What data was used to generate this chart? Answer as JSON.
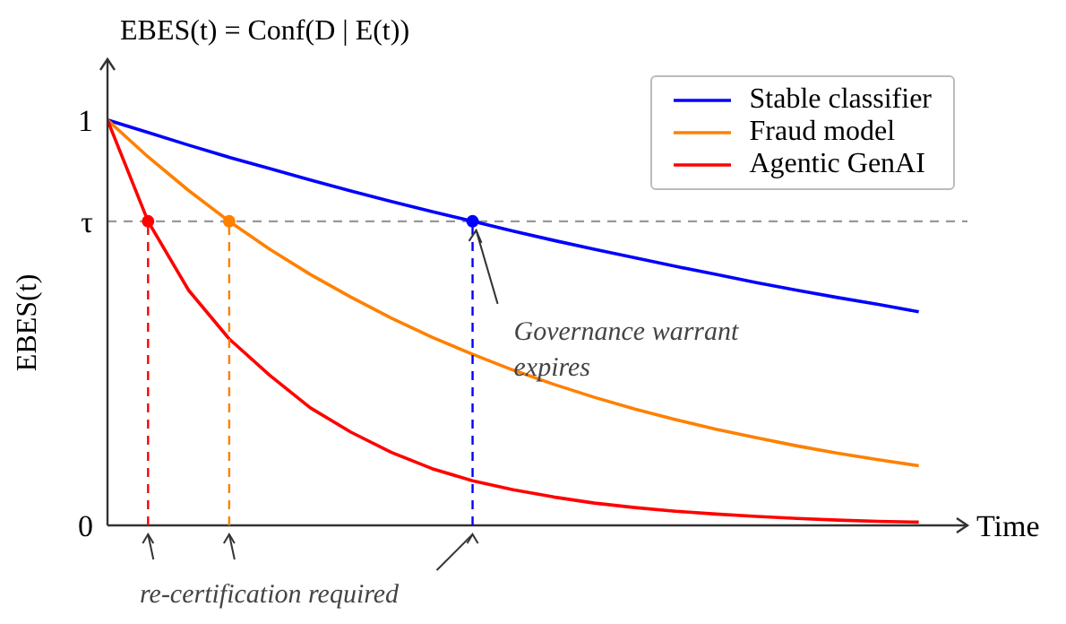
{
  "chart_data": {
    "type": "line",
    "title": "EBES(t) = Conf(D | E(t))",
    "ylabel": "EBES(t)",
    "xlabel": "Time",
    "categories": [
      null,
      null,
      null,
      null,
      null,
      null,
      null,
      null,
      null,
      null,
      null,
      null,
      null,
      null,
      null,
      null,
      null,
      null,
      null,
      null,
      null
    ],
    "ylim": [
      0,
      1.15
    ],
    "yticks": [
      0,
      {
        "value": 0.75,
        "label": "τ"
      },
      1
    ],
    "grid": false,
    "legend": "top right",
    "line_style": "solid",
    "series": [
      {
        "name": "Stable classifier",
        "color": "#0000ff",
        "values": [
          1,
          0.969,
          0.938,
          0.908,
          0.88,
          0.852,
          0.825,
          0.799,
          0.774,
          0.75,
          0.726,
          0.703,
          0.681,
          0.66,
          0.639,
          0.619,
          0.599,
          0.58,
          0.562,
          0.545,
          0.527
        ]
      },
      {
        "name": "Fraud model",
        "color": "#ff8000",
        "values": [
          1,
          0.909,
          0.826,
          0.75,
          0.681,
          0.619,
          0.563,
          0.511,
          0.464,
          0.422,
          0.383,
          0.348,
          0.316,
          0.287,
          0.261,
          0.237,
          0.216,
          0.196,
          0.178,
          0.162,
          0.147
        ]
      },
      {
        "name": "Agentic GenAI",
        "color": "#ff0000",
        "values": [
          1,
          0.75,
          0.58,
          0.46,
          0.37,
          0.29,
          0.23,
          0.18,
          0.14,
          0.11,
          0.088,
          0.07,
          0.055,
          0.044,
          0.035,
          0.028,
          0.022,
          0.017,
          0.013,
          0.01,
          0.008
        ]
      },
      {
        "type": "lollipop",
        "color": "#0000ff",
        "line_style": "dashed",
        "values": [
          null,
          null,
          null,
          null,
          null,
          null,
          null,
          null,
          null,
          0.75,
          null,
          null,
          null,
          null,
          null,
          null,
          null,
          null,
          null,
          null,
          null
        ]
      },
      {
        "type": "lollipop",
        "color": "#ff8000",
        "line_style": "dashed",
        "values": [
          null,
          null,
          null,
          0.75,
          null,
          null,
          null,
          null,
          null,
          null,
          null,
          null,
          null,
          null,
          null,
          null,
          null,
          null,
          null,
          null,
          null
        ]
      },
      {
        "type": "lollipop",
        "color": "#ff0000",
        "line_style": "dashed",
        "values": [
          null,
          0.75,
          null,
          null,
          null,
          null,
          null,
          null,
          null,
          null,
          null,
          null,
          null,
          null,
          null,
          null,
          null,
          null,
          null,
          null,
          null
        ]
      }
    ],
    "ref_lines": [
      {
        "axis": "y",
        "value": 0.75,
        "color": "#999999",
        "line_style": "dashed"
      }
    ],
    "annotations": [
      "Governance warrant expires",
      "re-certification required"
    ]
  }
}
